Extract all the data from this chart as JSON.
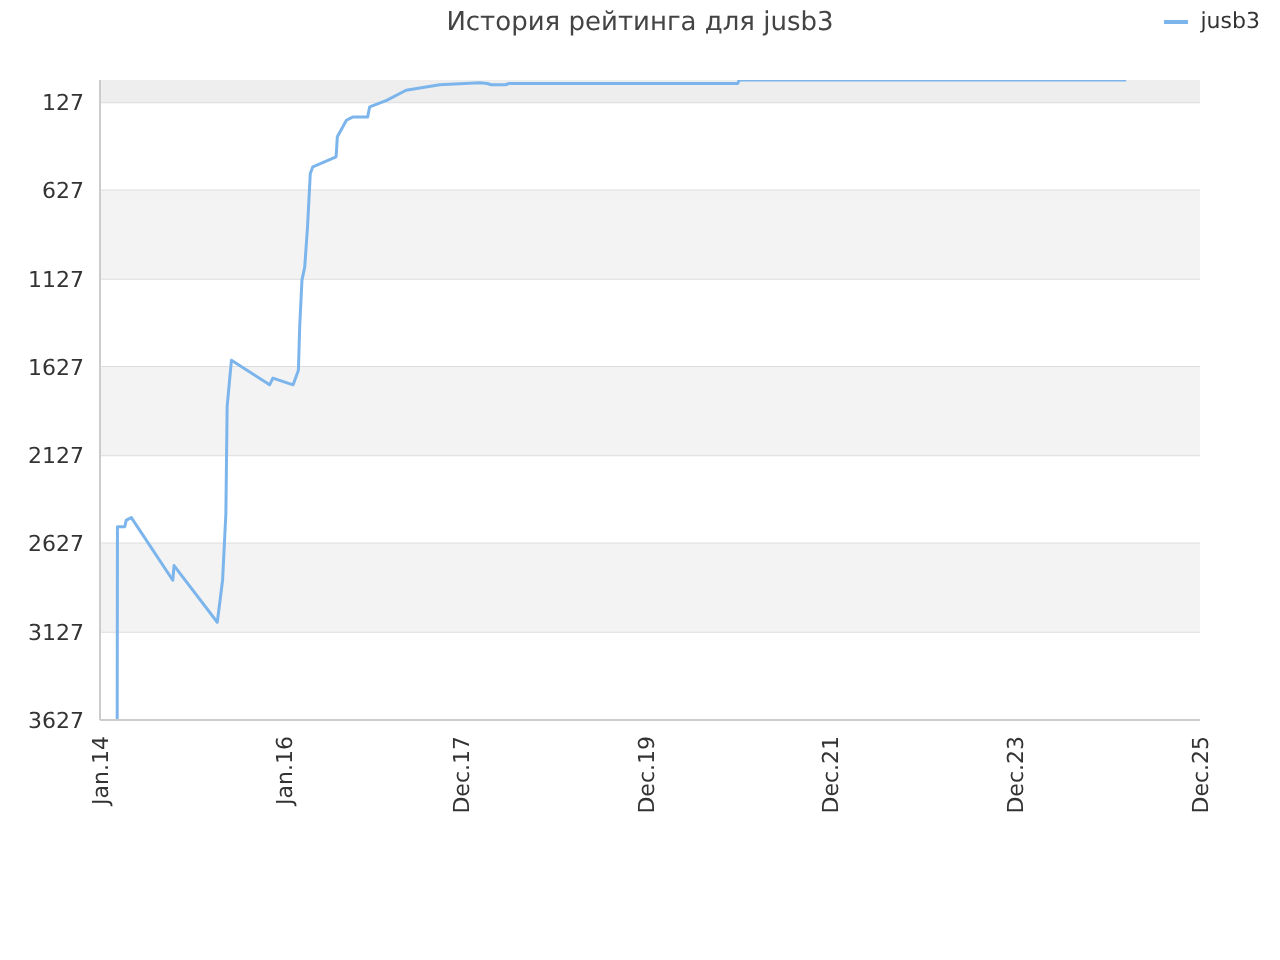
{
  "chart_data": {
    "type": "line",
    "title": "История рейтинга для jusb3",
    "x": [
      "2014-03-10",
      "2014-03-11",
      "2014-04-09",
      "2014-04-15",
      "2014-05-05",
      "2014-10-16",
      "2014-10-21",
      "2015-04-10",
      "2015-05-01",
      "2015-05-14",
      "2015-05-19",
      "2015-06-05",
      "2015-11-03",
      "2015-11-16",
      "2016-02-04",
      "2016-02-25",
      "2016-03-01",
      "2016-03-10",
      "2016-03-21",
      "2016-04-01",
      "2016-04-12",
      "2016-04-22",
      "2016-07-23",
      "2016-07-28",
      "2016-09-02",
      "2016-09-28",
      "2016-11-25",
      "2016-12-03",
      "2017-02-08",
      "2017-04-26",
      "2017-09-06",
      "2018-02-12",
      "2018-03-13",
      "2018-03-28",
      "2018-05-24",
      "2018-06-08",
      "2020-11-28",
      "2020-12-04",
      "2025-02-12"
    ],
    "series": [
      {
        "name": "jusb3",
        "color": "#7cb5ec",
        "values": [
          3627,
          2532,
          2532,
          2495,
          2480,
          2835,
          2752,
          3073,
          2835,
          2457,
          1850,
          1589,
          1728,
          1690,
          1728,
          1645,
          1400,
          1135,
          1060,
          833,
          531,
          493,
          436,
          323,
          229,
          210,
          210,
          153,
          116,
          59,
          28,
          17,
          21,
          28,
          28,
          21,
          21,
          1,
          1
        ]
      }
    ],
    "xlim": [
      "2014-01-01",
      "2025-12-01"
    ],
    "xticks": [
      {
        "value": "2014-01-01",
        "label": "Jan.14"
      },
      {
        "value": "2016-01-01",
        "label": "Jan.16"
      },
      {
        "value": "2017-12-01",
        "label": "Dec.17"
      },
      {
        "value": "2019-12-01",
        "label": "Dec.19"
      },
      {
        "value": "2021-12-01",
        "label": "Dec.21"
      },
      {
        "value": "2023-12-01",
        "label": "Dec.23"
      },
      {
        "value": "2025-12-01",
        "label": "Dec.25"
      }
    ],
    "ylim": [
      3627,
      1
    ],
    "yticks": [
      127,
      627,
      1127,
      1627,
      2127,
      2627,
      3127,
      3627
    ],
    "bands": [
      {
        "axis": "y",
        "from": 1,
        "to": 127,
        "color": "#eeeeee"
      },
      {
        "axis": "y",
        "from": 627,
        "to": 1127,
        "color": "#f3f3f3"
      },
      {
        "axis": "y",
        "from": 1627,
        "to": 2127,
        "color": "#f3f3f3"
      },
      {
        "axis": "y",
        "from": 2627,
        "to": 3127,
        "color": "#f3f3f3"
      }
    ],
    "grid": "y",
    "legend": "top right",
    "marker": "none",
    "line_style": "solid"
  }
}
